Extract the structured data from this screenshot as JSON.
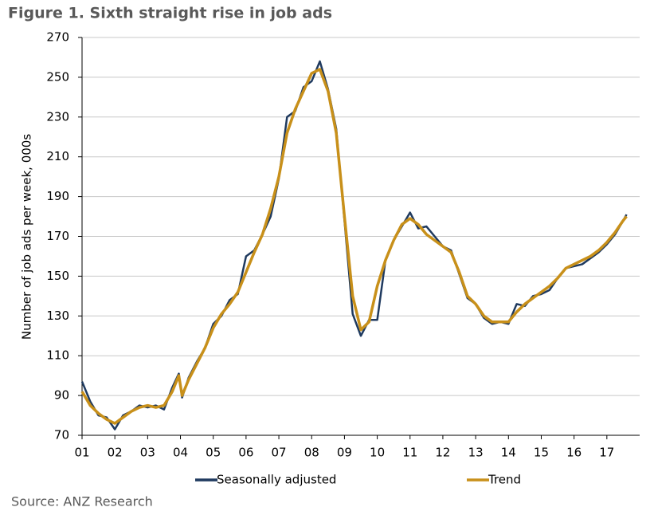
{
  "chart_data": {
    "type": "line",
    "title": "Figure 1. Sixth straight rise in job ads",
    "y_label": "Number of job ads per week, 000s",
    "source": "Source: ANZ Research",
    "x": [
      1.0,
      1.25,
      1.5,
      1.75,
      2.0,
      2.25,
      2.5,
      2.75,
      3.0,
      3.25,
      3.5,
      3.75,
      3.95,
      4.05,
      4.25,
      4.5,
      4.75,
      5.0,
      5.25,
      5.5,
      5.75,
      6.0,
      6.25,
      6.5,
      6.75,
      7.0,
      7.25,
      7.5,
      7.75,
      8.0,
      8.25,
      8.5,
      8.75,
      9.0,
      9.25,
      9.5,
      9.75,
      10.0,
      10.25,
      10.5,
      10.75,
      11.0,
      11.25,
      11.5,
      11.75,
      12.0,
      12.25,
      12.5,
      12.75,
      13.0,
      13.25,
      13.5,
      13.75,
      14.0,
      14.25,
      14.5,
      14.75,
      15.0,
      15.25,
      15.5,
      15.75,
      16.0,
      16.25,
      16.5,
      16.75,
      17.0,
      17.25,
      17.5,
      17.6
    ],
    "series": [
      {
        "name": "Seasonally adjusted",
        "color": "#1f3a5f",
        "values": [
          97,
          87,
          80,
          79,
          73,
          80,
          82,
          85,
          84,
          85,
          83,
          94,
          101,
          89,
          99,
          107,
          114,
          126,
          130,
          138,
          141,
          160,
          163,
          171,
          180,
          199,
          230,
          233,
          245,
          248,
          258,
          244,
          224,
          178,
          131,
          120,
          128,
          128,
          158,
          168,
          175,
          182,
          174,
          175,
          170,
          165,
          163,
          151,
          139,
          136,
          129,
          126,
          127,
          126,
          136,
          135,
          140,
          141,
          143,
          149,
          154,
          155,
          156,
          159,
          162,
          166,
          171,
          178,
          181
        ]
      },
      {
        "name": "Trend",
        "color": "#c8901a",
        "values": [
          92,
          85,
          81,
          78,
          76,
          79,
          82,
          84,
          85,
          84,
          85,
          92,
          100,
          90,
          98,
          106,
          114,
          124,
          131,
          136,
          142,
          152,
          162,
          171,
          184,
          200,
          222,
          234,
          243,
          252,
          254,
          243,
          222,
          180,
          140,
          123,
          127,
          145,
          158,
          168,
          176,
          179,
          176,
          171,
          168,
          165,
          162,
          152,
          140,
          136,
          130,
          127,
          127,
          127,
          132,
          136,
          139,
          142,
          145,
          149,
          154,
          156,
          158,
          160,
          163,
          167,
          172,
          178,
          180
        ]
      }
    ],
    "xlim": [
      1,
      18
    ],
    "xticks": [
      {
        "value": 1,
        "label": "01"
      },
      {
        "value": 2,
        "label": "02"
      },
      {
        "value": 3,
        "label": "03"
      },
      {
        "value": 4,
        "label": "04"
      },
      {
        "value": 5,
        "label": "05"
      },
      {
        "value": 6,
        "label": "06"
      },
      {
        "value": 7,
        "label": "07"
      },
      {
        "value": 8,
        "label": "08"
      },
      {
        "value": 9,
        "label": "09"
      },
      10,
      11,
      12,
      13,
      14,
      15,
      16,
      17
    ],
    "ylim": [
      70,
      270
    ],
    "yticks": [
      70,
      90,
      110,
      130,
      150,
      170,
      190,
      210,
      230,
      250,
      270
    ],
    "grid": true
  }
}
